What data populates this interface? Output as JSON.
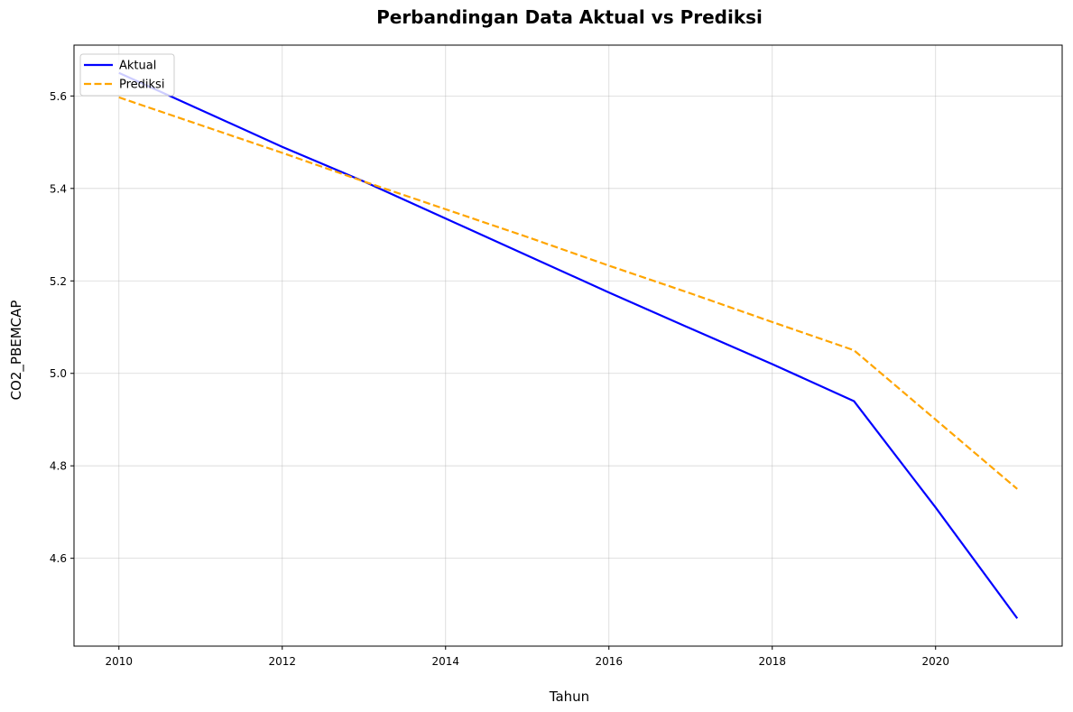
{
  "chart_data": {
    "type": "line",
    "title": "Perbandingan Data Aktual vs Prediksi",
    "xlabel": "Tahun",
    "ylabel": "CO2_PBEMCAP",
    "x": [
      2010,
      2011,
      2012,
      2013,
      2014,
      2015,
      2016,
      2017,
      2018,
      2019,
      2020,
      2021
    ],
    "series": [
      {
        "name": "Aktual",
        "color": "#0000ff",
        "line_style": "solid",
        "values": [
          5.65,
          5.57,
          5.49,
          5.415,
          5.335,
          5.255,
          5.175,
          5.097,
          5.02,
          4.94,
          4.71,
          4.47
        ]
      },
      {
        "name": "Prediksi",
        "color": "#ffa500",
        "line_style": "dashed",
        "values": [
          5.597,
          5.537,
          5.477,
          5.415,
          5.355,
          5.295,
          5.233,
          5.173,
          5.111,
          5.05,
          4.9,
          4.75
        ]
      }
    ],
    "xlim": [
      2009.45,
      2021.55
    ],
    "ylim": [
      4.41,
      5.71
    ],
    "x_ticks": [
      2010,
      2012,
      2014,
      2016,
      2018,
      2020
    ],
    "y_ticks": [
      4.6,
      4.8,
      5.0,
      5.2,
      5.4,
      5.6
    ],
    "grid": true,
    "legend_position": "top-left"
  }
}
